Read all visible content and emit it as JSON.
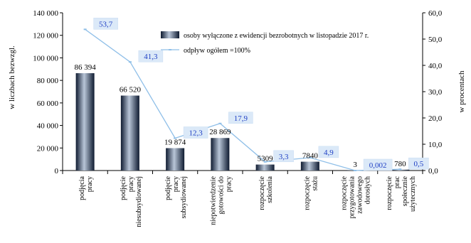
{
  "chart_data": {
    "type": "bar",
    "categories": [
      "podjęcia pracy",
      "podjęcie pracy niesubsydiowanej",
      "podjęcie pracy subsydiowanej",
      "niepotwierdzenie gotowości do pracy",
      "rozpoczęcie szkolenia",
      "rozpoczęcie stażu",
      "rozpoczęcie przygotowania zawodowego dorosłych",
      "rozpoczęcie prac społecznie użytecznych"
    ],
    "series": [
      {
        "name": "osoby wyłączone z ewidencji bezrobotnych w listopadzie 2017 r.",
        "type": "bar",
        "axis": "left",
        "values": [
          86394,
          66520,
          19874,
          28869,
          5309,
          7840,
          3,
          780
        ],
        "labels": [
          "86 394",
          "66 520",
          "19 874",
          "28 869",
          "5309",
          "7840",
          "3",
          "780"
        ]
      },
      {
        "name": "odpływ ogółem =100%",
        "type": "line",
        "axis": "right",
        "values": [
          53.7,
          41.3,
          12.3,
          17.9,
          3.3,
          4.9,
          0.002,
          0.5
        ],
        "labels": [
          "53,7",
          "41,3",
          "12,3",
          "17,9",
          "3,3",
          "4,9",
          "0,002",
          "0,5"
        ]
      }
    ],
    "y_left": {
      "label": "w liczbach bezwzgl.",
      "range": [
        0,
        140000
      ],
      "ticks": [
        "0",
        "20 000",
        "40 000",
        "60 000",
        "80 000",
        "100 000",
        "120 000",
        "140 000"
      ]
    },
    "y_right": {
      "label": "w procentach",
      "range": [
        0,
        60
      ],
      "ticks": [
        "0,0",
        "10,0",
        "20,0",
        "30,0",
        "40,0",
        "50,0",
        "60,0"
      ]
    },
    "grid": false,
    "legend_position": "top-right",
    "colors": {
      "bar_dark": "#0e1a30",
      "bar_light": "#b9c6d8",
      "line": "#8fbfe8",
      "pct_label_fill": "#dbe9f8",
      "pct_label_text": "#1f3fc4"
    }
  }
}
